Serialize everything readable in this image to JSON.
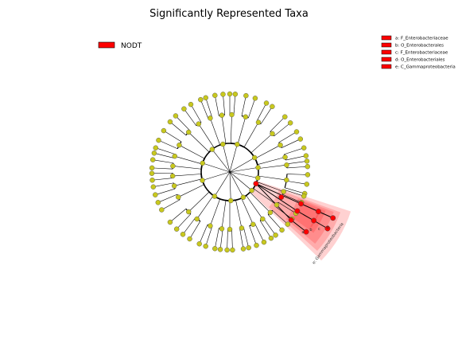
{
  "chart_data": {
    "type": "cladogram",
    "title": "Significantly Represented Taxa",
    "legend": [
      {
        "name": "NODT",
        "color": "#ff0000"
      }
    ],
    "clade_key": [
      {
        "letter": "a",
        "label": "a: F_Enterobacteriaceae"
      },
      {
        "letter": "b",
        "label": "b: O_Enterobacterales"
      },
      {
        "letter": "c",
        "label": "c: F_Enterobacteriaceae"
      },
      {
        "letter": "d",
        "label": "d: O_Enterobacteriales"
      },
      {
        "letter": "e",
        "label": "e: C_Gammaproteobacteria"
      }
    ],
    "highlighted_clade": {
      "class": "NODT",
      "color": "#ff0000",
      "label": "e: Gammaproteobacteria"
    },
    "colors": {
      "enriched_node": "#ff0000",
      "neutral_node": "#c8c81e",
      "node_edge": "#444444",
      "branch": "#000000"
    }
  }
}
